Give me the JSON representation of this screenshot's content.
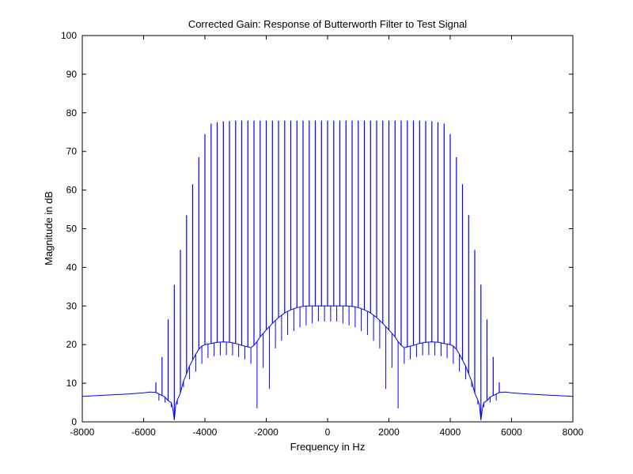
{
  "chart_data": {
    "type": "line",
    "title": "Corrected Gain: Response of Butterworth Filter to Test Signal",
    "xlabel": "Frequency in Hz",
    "ylabel": "Magnitude in dB",
    "xlim": [
      -8000,
      8000
    ],
    "ylim": [
      0,
      100
    ],
    "xticks": [
      -8000,
      -6000,
      -4000,
      -2000,
      0,
      2000,
      4000,
      6000,
      8000
    ],
    "xtick_labels": [
      "-8000",
      "-6000",
      "-4000",
      "-2000",
      "0",
      "2000",
      "4000",
      "6000",
      "8000"
    ],
    "yticks": [
      0,
      10,
      20,
      30,
      40,
      50,
      60,
      70,
      80,
      90,
      100
    ],
    "ytick_labels": [
      "0",
      "10",
      "20",
      "30",
      "40",
      "50",
      "60",
      "70",
      "80",
      "90",
      "100"
    ],
    "grid": false,
    "legend": "none",
    "series": [
      {
        "color": "#0000ff",
        "x": [
          -8000,
          -7500,
          -7000,
          -6500,
          -6000,
          -5800,
          -5600,
          -5500,
          -5400,
          -5300,
          -5200,
          -5100,
          -5050,
          -5000,
          -4950,
          -4900,
          -4800,
          -4700,
          -4600,
          -4500,
          -4400,
          -4300,
          -4200,
          -4100,
          -4000,
          -3800,
          -3600,
          -3400,
          -3200,
          -3000,
          -2800,
          -2600,
          -2500,
          -2400,
          -2300,
          -2250,
          -2200,
          -2000,
          -1800,
          -1600,
          -1400,
          -1200,
          -1000,
          -800,
          -600,
          -400,
          -200,
          0,
          200,
          400,
          600,
          800,
          1000,
          1200,
          1400,
          1600,
          1800,
          2000,
          2200,
          2250,
          2300,
          2400,
          2500,
          2600,
          2800,
          3000,
          3200,
          3400,
          3600,
          3800,
          4000,
          4100,
          4200,
          4300,
          4400,
          4500,
          4600,
          4700,
          4800,
          4900,
          4950,
          5000,
          5050,
          5100,
          5200,
          5300,
          5400,
          5500,
          5600,
          5800,
          6000,
          6500,
          7000,
          7500,
          8000
        ],
        "y": [
          6.6,
          6.8,
          7.0,
          7.2,
          7.5,
          7.7,
          7.6,
          7.2,
          6.8,
          6.4,
          5.5,
          5.0,
          3.5,
          0.5,
          4.5,
          5.6,
          7.5,
          10.5,
          12.5,
          14.5,
          16.0,
          17.5,
          18.8,
          19.6,
          20.0,
          20.3,
          20.6,
          20.7,
          20.6,
          20.3,
          19.8,
          19.4,
          19.2,
          19.8,
          20.8,
          21.4,
          22.0,
          23.8,
          25.5,
          27.0,
          28.2,
          29.0,
          29.6,
          29.9,
          30.0,
          30.0,
          30.0,
          30.0,
          30.0,
          30.0,
          30.0,
          29.9,
          29.6,
          29.0,
          28.2,
          27.0,
          25.5,
          23.8,
          22.0,
          21.4,
          20.8,
          19.8,
          19.2,
          19.4,
          19.8,
          20.3,
          20.6,
          20.7,
          20.6,
          20.3,
          20.0,
          19.6,
          18.8,
          17.5,
          16.0,
          14.5,
          12.5,
          10.5,
          7.5,
          5.6,
          4.5,
          0.5,
          3.5,
          5.0,
          5.5,
          6.4,
          6.8,
          7.2,
          7.6,
          7.7,
          7.5,
          7.2,
          7.0,
          6.8,
          6.6
        ]
      }
    ],
    "harmonic_spikes": {
      "spacing_hz": 200,
      "tops_x": [
        -5600,
        -5400,
        -5200,
        -5000,
        -4800,
        -4600,
        -4400,
        -4200,
        -4000,
        -3800,
        -3600,
        -3400,
        -3200,
        -3000,
        -2800,
        -2600,
        -2400,
        -2200,
        -2000,
        -1800,
        -1600,
        -1400,
        -1200,
        -1000,
        -800,
        -600,
        -400,
        -200,
        0,
        200,
        400,
        600,
        800,
        1000,
        1200,
        1400,
        1600,
        1800,
        2000,
        2200,
        2400,
        2600,
        2800,
        3000,
        3200,
        3400,
        3600,
        3800,
        4000,
        4200,
        4400,
        4600,
        4800,
        5000,
        5200,
        5400,
        5600
      ],
      "tops_y": [
        10.2,
        16.8,
        26.5,
        35.5,
        44.5,
        53.5,
        61.5,
        68.5,
        74.5,
        77.2,
        77.6,
        77.8,
        77.9,
        78.0,
        78.0,
        78.0,
        78.0,
        78.0,
        78.0,
        78.0,
        78.0,
        78.0,
        78.0,
        78.0,
        78.0,
        78.0,
        78.0,
        78.0,
        78.0,
        78.0,
        78.0,
        78.0,
        78.0,
        78.0,
        78.0,
        78.0,
        78.0,
        78.0,
        78.0,
        78.0,
        78.0,
        78.0,
        78.0,
        78.0,
        77.9,
        77.8,
        77.6,
        77.2,
        74.5,
        68.5,
        61.5,
        53.5,
        44.5,
        35.5,
        26.5,
        16.8,
        10.2
      ],
      "notches_x": [
        -5500,
        -5300,
        -5100,
        -4900,
        -4700,
        -4500,
        -4300,
        -4100,
        -3900,
        -3700,
        -3500,
        -3300,
        -3100,
        -2900,
        -2700,
        -2500,
        -2300,
        -2100,
        -1900,
        -1700,
        -1500,
        -1300,
        -1100,
        -900,
        -700,
        -500,
        -300,
        -100,
        100,
        300,
        500,
        700,
        900,
        1100,
        1300,
        1500,
        1700,
        1900,
        2100,
        2300,
        2500,
        2700,
        2900,
        3100,
        3300,
        3500,
        3700,
        3900,
        4100,
        4300,
        4500,
        4700,
        4900,
        5100,
        5300,
        5500
      ],
      "notches_y": [
        5.5,
        5.0,
        3.8,
        4.5,
        9.0,
        11.0,
        13.0,
        15.0,
        16.5,
        17.0,
        17.2,
        17.3,
        17.2,
        16.8,
        16.2,
        15.0,
        3.5,
        14.0,
        8.5,
        19.0,
        21.0,
        22.5,
        23.5,
        24.5,
        25.0,
        25.5,
        26.0,
        26.0,
        26.0,
        26.0,
        25.5,
        25.0,
        24.5,
        23.5,
        22.5,
        21.0,
        19.0,
        8.5,
        14.0,
        3.5,
        15.0,
        16.2,
        16.8,
        17.2,
        17.3,
        17.2,
        17.0,
        16.5,
        15.0,
        13.0,
        11.0,
        9.0,
        4.5,
        3.8,
        5.0,
        5.5
      ]
    }
  }
}
